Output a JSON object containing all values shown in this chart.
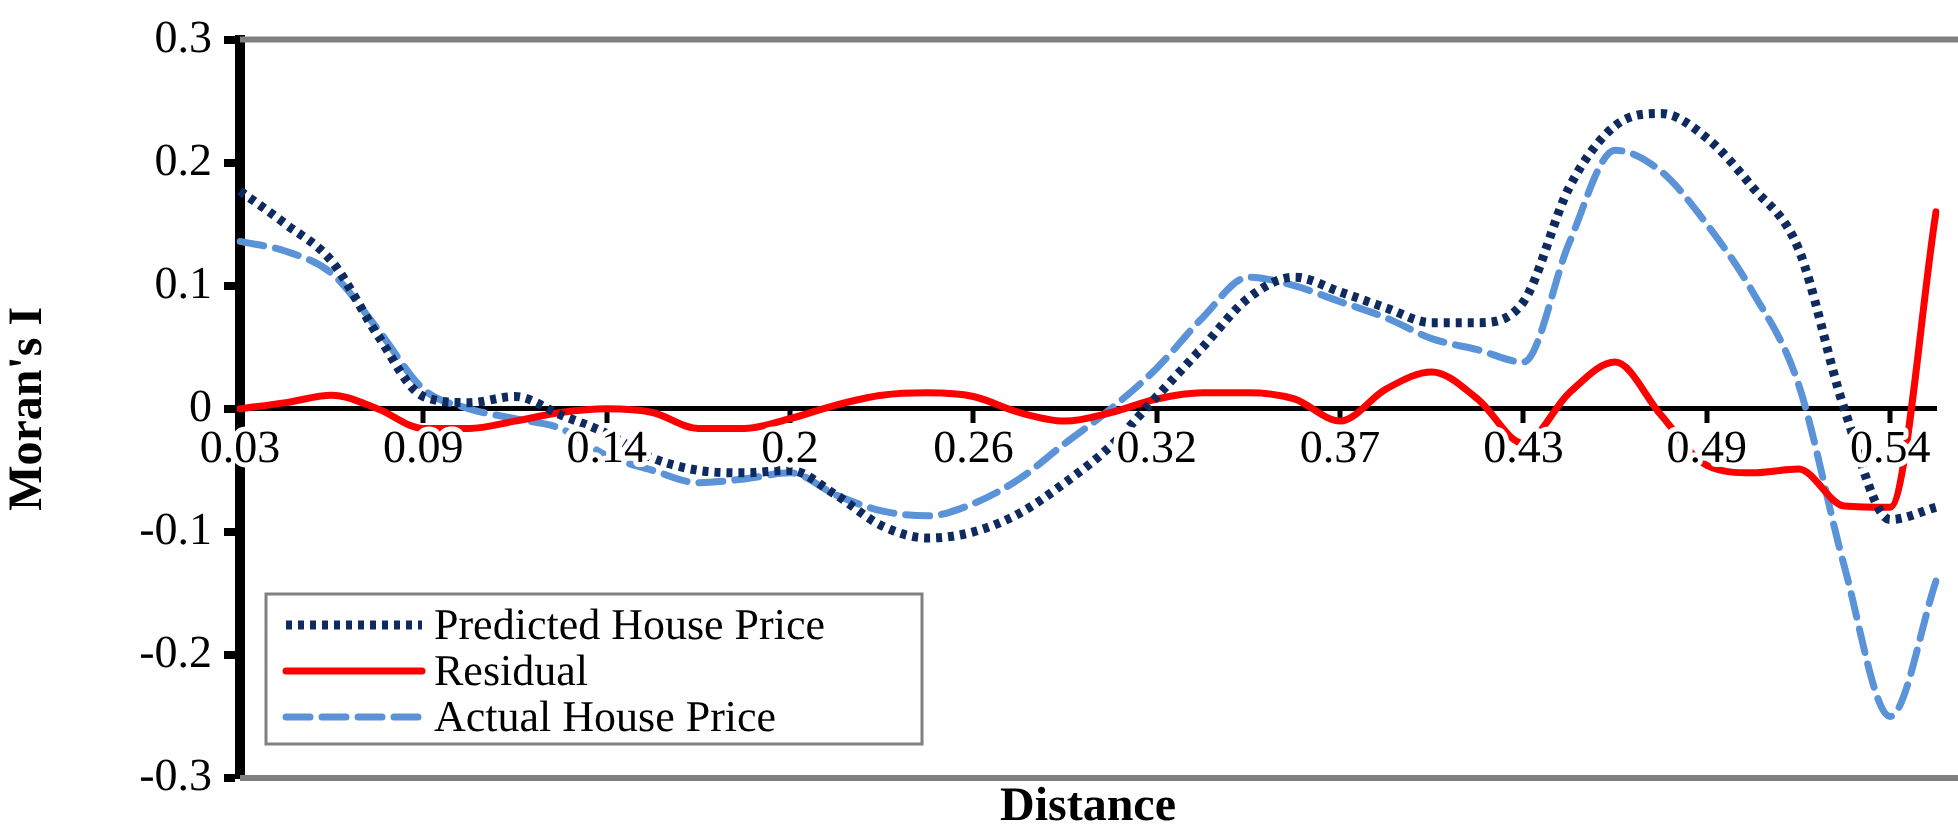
{
  "chart_data": {
    "type": "line",
    "xlabel": "Distance",
    "ylabel": "Moran's I",
    "categories": [
      "0.03",
      null,
      null,
      null,
      "0.09",
      null,
      null,
      null,
      "0.14",
      null,
      null,
      null,
      "0.2",
      null,
      null,
      null,
      "0.26",
      null,
      null,
      null,
      "0.32",
      null,
      null,
      null,
      "0.37",
      null,
      null,
      null,
      "0.43",
      null,
      null,
      null,
      "0.49",
      null,
      null,
      null,
      "0.54",
      null
    ],
    "ylim": [
      -0.3,
      0.3
    ],
    "yticks": [
      {
        "value": 0.3,
        "label": "0.3"
      },
      {
        "value": 0.2,
        "label": "0.2"
      },
      {
        "value": 0.1,
        "label": "0.1"
      },
      {
        "value": 0,
        "label": "0"
      },
      {
        "value": -0.1,
        "label": "-0.1"
      },
      {
        "value": -0.2,
        "label": "-0.2"
      },
      {
        "value": -0.3,
        "label": "-0.3"
      }
    ],
    "grid": false,
    "legend": "bottom left",
    "series": [
      {
        "name": "Predicted House Price",
        "color": "#0f2a5f",
        "line_style": "dotted",
        "values": [
          0.177,
          0.15,
          0.12,
          0.06,
          0.01,
          0.005,
          0.01,
          -0.005,
          -0.02,
          -0.04,
          -0.05,
          -0.052,
          -0.05,
          -0.07,
          -0.095,
          -0.105,
          -0.1,
          -0.085,
          -0.06,
          -0.03,
          0.01,
          0.05,
          0.09,
          0.107,
          0.095,
          0.082,
          0.07,
          0.07,
          0.087,
          0.18,
          0.23,
          0.24,
          0.22,
          0.18,
          0.13,
          0,
          -0.09,
          -0.08
        ]
      },
      {
        "name": "Residual",
        "color": "#ff0000",
        "line_style": "solid",
        "values": [
          0,
          0.005,
          0.011,
          0,
          -0.016,
          -0.016,
          -0.01,
          -0.003,
          0,
          -0.003,
          -0.016,
          -0.016,
          -0.008,
          0.003,
          0.011,
          0.013,
          0.01,
          -0.003,
          -0.01,
          -0.003,
          0.008,
          0.013,
          0.013,
          0.008,
          -0.01,
          0.016,
          0.03,
          0.008,
          -0.028,
          0.013,
          0.038,
          -0.005,
          -0.046,
          -0.052,
          -0.049,
          -0.079,
          -0.08,
          0.16
        ]
      },
      {
        "name": "Actual House Price",
        "color": "#5b93d9",
        "line_style": "dashed",
        "values": [
          0.136,
          0.128,
          0.11,
          0.065,
          0.016,
          0,
          -0.008,
          -0.016,
          -0.038,
          -0.05,
          -0.06,
          -0.057,
          -0.052,
          -0.07,
          -0.083,
          -0.087,
          -0.077,
          -0.057,
          -0.028,
          0,
          0.033,
          0.074,
          0.107,
          0.1,
          0.087,
          0.074,
          0.057,
          0.048,
          0.038,
          0.135,
          0.21,
          0.193,
          0.15,
          0.095,
          0.02,
          -0.128,
          -0.25,
          -0.14
        ]
      }
    ]
  }
}
